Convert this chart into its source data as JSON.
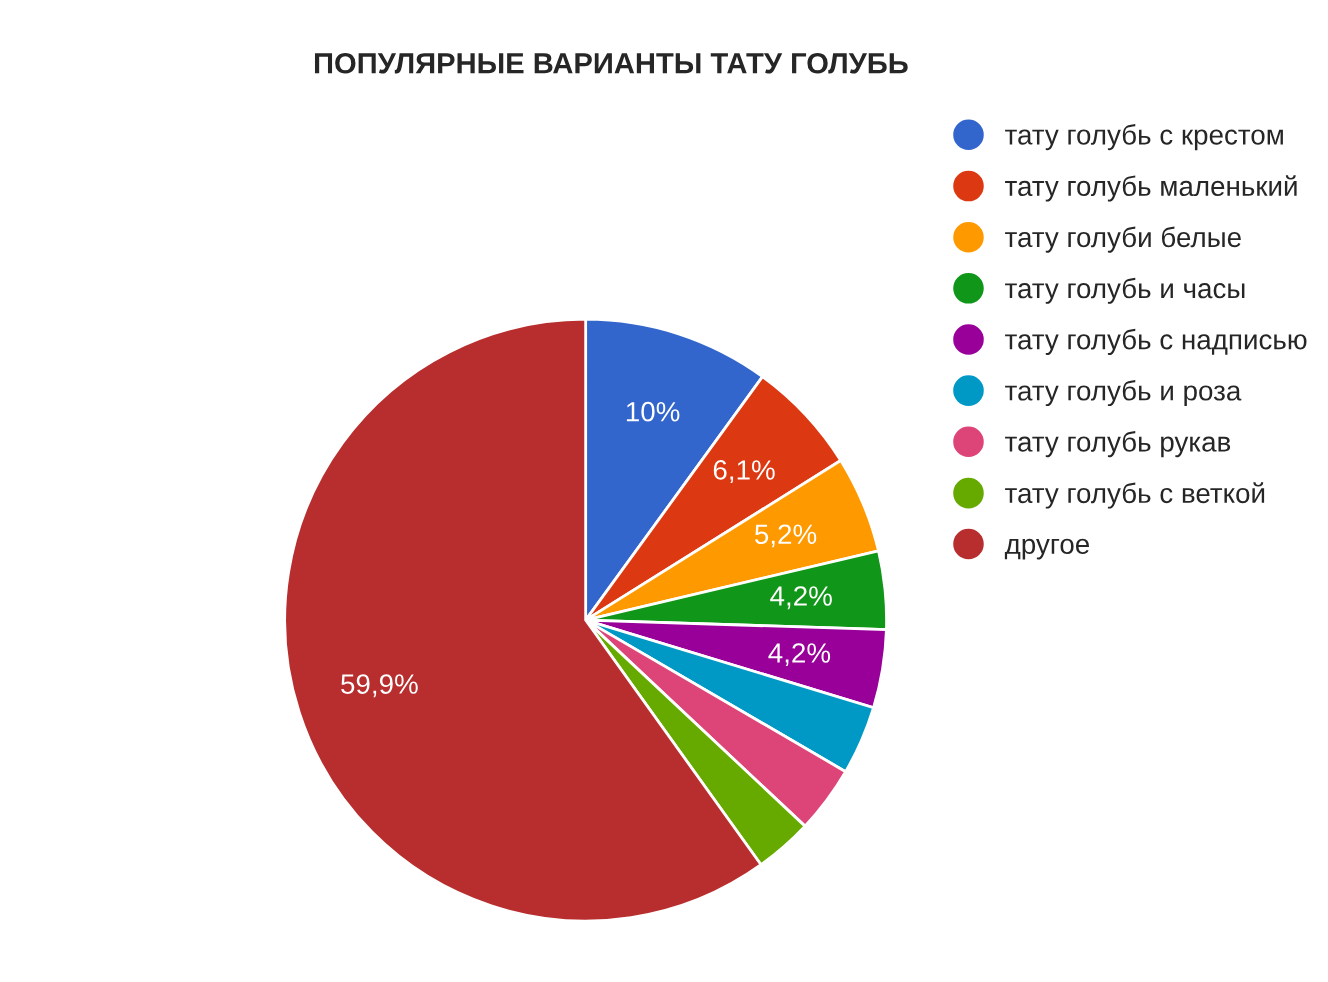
{
  "chart_data": {
    "type": "pie",
    "title": "ПОПУЛЯРНЫЕ ВАРИАНТЫ ТАТУ ГОЛУБЬ",
    "categories": [
      "тату голубь с крестом",
      "тату голубь маленький",
      "тату голуби белые",
      "тату голубь и часы",
      "тату голубь с надписью",
      "тату голубь и роза",
      "тату голубь рукав",
      "тату голубь с веткой",
      "другое"
    ],
    "values": [
      10,
      6.1,
      5.2,
      4.2,
      4.2,
      3.7,
      3.6,
      3.1,
      59.9
    ],
    "value_labels": [
      "10%",
      "6,1%",
      "5,2%",
      "4,2%",
      "4,2%",
      null,
      null,
      null,
      "59,9%"
    ],
    "colors": [
      "#3366cc",
      "#dc3912",
      "#ff9900",
      "#109618",
      "#990099",
      "#0099c6",
      "#dd4477",
      "#66aa00",
      "#b82e2e"
    ],
    "legend": "right"
  }
}
